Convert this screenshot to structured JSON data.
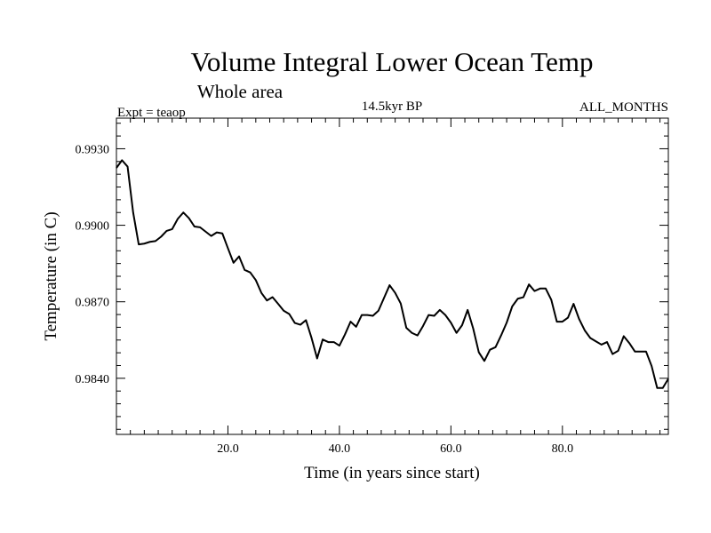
{
  "chart_data": {
    "type": "line",
    "title": "Volume Integral Lower Ocean Temp",
    "subtitle": "Whole area",
    "left_label": "Expt = teaop",
    "center_label": "14.5kyr BP",
    "right_label": "ALL_MONTHS",
    "xlabel": "Time (in years since start)",
    "ylabel": "Temperature (in C)",
    "xlim": [
      0,
      99
    ],
    "ylim": [
      0.9818,
      0.9942
    ],
    "x_ticks": [
      20,
      40,
      60,
      80
    ],
    "x_tick_labels": [
      "20.0",
      "40.0",
      "60.0",
      "80.0"
    ],
    "y_ticks": [
      0.984,
      0.987,
      0.99,
      0.993
    ],
    "y_tick_labels": [
      "0.9840",
      "0.9870",
      "0.9900",
      "0.9930"
    ],
    "grid": false,
    "series": [
      {
        "name": "Temperature",
        "color": "#000000",
        "x": [
          0,
          1,
          2,
          3,
          4,
          5,
          6,
          7,
          8,
          9,
          10,
          11,
          12,
          13,
          14,
          15,
          16,
          17,
          18,
          19,
          20,
          21,
          22,
          23,
          24,
          25,
          26,
          27,
          28,
          29,
          30,
          31,
          32,
          33,
          34,
          35,
          36,
          37,
          38,
          39,
          40,
          41,
          42,
          43,
          44,
          45,
          46,
          47,
          48,
          49,
          50,
          51,
          52,
          53,
          54,
          55,
          56,
          57,
          58,
          59,
          60,
          61,
          62,
          63,
          64,
          65,
          66,
          67,
          68,
          69,
          70,
          71,
          72,
          73,
          74,
          75,
          76,
          77,
          78,
          79,
          80,
          81,
          82,
          83,
          84,
          85,
          86,
          87,
          88,
          89,
          90,
          91,
          92,
          93,
          94,
          95,
          96,
          97,
          98,
          99
        ],
        "values": [
          0.99225,
          0.99255,
          0.9923,
          0.9905,
          0.98925,
          0.98928,
          0.98935,
          0.98938,
          0.98955,
          0.98978,
          0.98985,
          0.99025,
          0.9905,
          0.99028,
          0.98995,
          0.98992,
          0.98975,
          0.98958,
          0.98972,
          0.98968,
          0.9891,
          0.98853,
          0.98878,
          0.98825,
          0.98815,
          0.98785,
          0.98735,
          0.98705,
          0.98718,
          0.98692,
          0.98665,
          0.98652,
          0.98617,
          0.9861,
          0.98628,
          0.98558,
          0.98478,
          0.98552,
          0.98542,
          0.98542,
          0.98528,
          0.98572,
          0.98622,
          0.98602,
          0.98648,
          0.98648,
          0.98645,
          0.98665,
          0.98715,
          0.98765,
          0.98735,
          0.98693,
          0.98598,
          0.98578,
          0.98568,
          0.98605,
          0.98648,
          0.98645,
          0.98668,
          0.98648,
          0.98618,
          0.98578,
          0.98608,
          0.98668,
          0.98595,
          0.98502,
          0.98468,
          0.98512,
          0.98522,
          0.98568,
          0.98618,
          0.98682,
          0.98712,
          0.98718,
          0.98768,
          0.98742,
          0.98752,
          0.98752,
          0.98708,
          0.98622,
          0.98622,
          0.98638,
          0.98692,
          0.98632,
          0.98588,
          0.98558,
          0.98545,
          0.98532,
          0.98542,
          0.98495,
          0.98508,
          0.98565,
          0.98538,
          0.98505,
          0.98505,
          0.98505,
          0.98448,
          0.98362,
          0.98362,
          0.98398
        ]
      }
    ]
  }
}
